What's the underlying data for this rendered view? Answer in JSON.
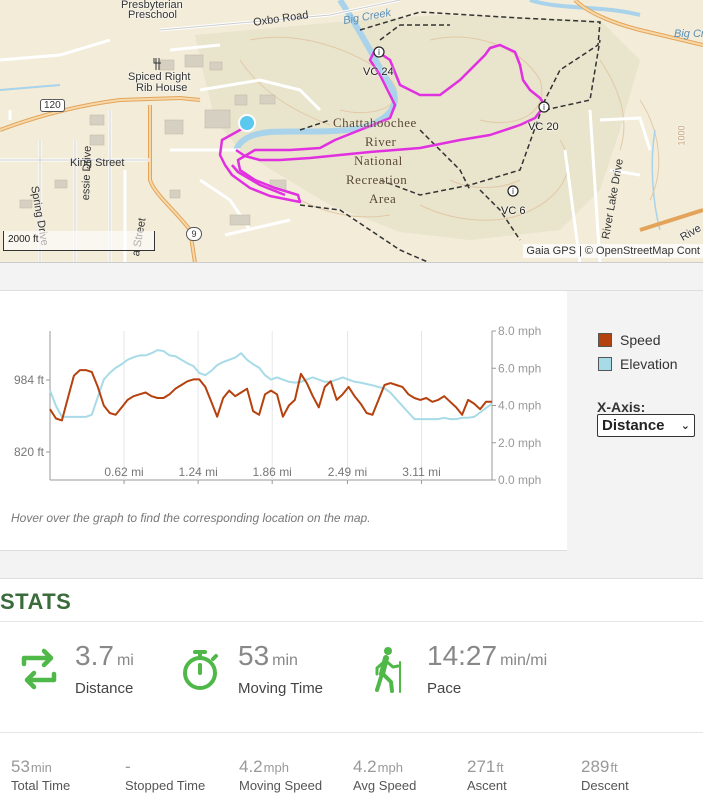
{
  "map": {
    "labels": {
      "presbyterian": "Presbyterian",
      "preschool": "Preschool",
      "oxbo_road": "Oxbo Road",
      "big_creek_1": "Big Creek",
      "big_creek_2": "Big Cr",
      "spiced_right": "Spiced Right",
      "rib_house": "Rib House",
      "route_120": "120",
      "king_street": "King Street",
      "spring_drive": "Spring Drive",
      "essie_drive": "essie Drive",
      "a_street": "a Street",
      "river_lake_drive": "River Lake Drive",
      "route_9": "9",
      "park_1": "Chattahoochee",
      "park_2": "River",
      "park_3": "National",
      "park_4": "Recreation",
      "park_5": "Area",
      "vc24": "VC 24",
      "vc20": "VC 20",
      "vc6": "VC 6",
      "river_edge": "Rive",
      "contour": "1000"
    },
    "scale_label": "2000 ft",
    "attribution": "Gaia GPS | © OpenStreetMap Cont",
    "track_color": "#e030e0",
    "start_marker_color": "#5bc8f0"
  },
  "chart": {
    "left_ticks": [
      "984 ft",
      "820 ft"
    ],
    "right_ticks": [
      "8.0 mph",
      "6.0 mph",
      "4.0 mph",
      "2.0 mph",
      "0.0 mph"
    ],
    "x_ticks": [
      "0.62 mi",
      "1.24 mi",
      "1.86 mi",
      "2.49 mi",
      "3.11 mi"
    ],
    "legend": [
      {
        "name": "Speed",
        "color": "#b5410e"
      },
      {
        "name": "Elevation",
        "color": "#a8dbe8"
      }
    ],
    "xaxis_label": "X-Axis:",
    "xaxis_value": "Distance",
    "hint": "Hover over the graph to find the corresponding location on the map."
  },
  "chart_data": {
    "type": "line",
    "xlabel": "",
    "ylabel": "",
    "x_unit": "mi",
    "x_range": [
      0,
      3.7
    ],
    "y_left_unit": "ft",
    "y_right_unit": "mph",
    "y_right_range": [
      0,
      8
    ],
    "series": [
      {
        "name": "Speed",
        "axis": "right",
        "x": [
          0.0,
          0.05,
          0.1,
          0.15,
          0.2,
          0.25,
          0.3,
          0.35,
          0.4,
          0.45,
          0.5,
          0.55,
          0.6,
          0.65,
          0.7,
          0.75,
          0.8,
          0.85,
          0.9,
          0.95,
          1.0,
          1.05,
          1.1,
          1.15,
          1.2,
          1.25,
          1.3,
          1.35,
          1.4,
          1.45,
          1.5,
          1.55,
          1.6,
          1.65,
          1.7,
          1.75,
          1.8,
          1.85,
          1.9,
          1.95,
          2.0,
          2.05,
          2.1,
          2.15,
          2.2,
          2.25,
          2.3,
          2.35,
          2.4,
          2.45,
          2.5,
          2.55,
          2.6,
          2.65,
          2.7,
          2.75,
          2.8,
          2.85,
          2.9,
          2.95,
          3.0,
          3.05,
          3.1,
          3.15,
          3.2,
          3.25,
          3.3,
          3.35,
          3.4,
          3.45,
          3.5,
          3.55,
          3.6,
          3.65,
          3.7
        ],
        "values": [
          3.8,
          3.3,
          3.2,
          4.4,
          5.6,
          5.9,
          5.9,
          5.8,
          5.0,
          4.0,
          3.6,
          3.5,
          3.9,
          4.3,
          4.5,
          4.6,
          4.7,
          4.5,
          4.4,
          4.4,
          4.6,
          4.9,
          5.1,
          5.3,
          5.4,
          5.4,
          5.0,
          4.2,
          3.4,
          4.4,
          4.8,
          4.5,
          4.7,
          4.9,
          3.7,
          3.5,
          4.6,
          4.8,
          4.6,
          3.4,
          4.0,
          4.3,
          5.7,
          5.2,
          4.5,
          3.9,
          5.0,
          5.3,
          4.3,
          4.6,
          5.0,
          4.5,
          4.1,
          3.6,
          3.5,
          4.3,
          5.1,
          5.2,
          5.1,
          5.0,
          4.6,
          4.4,
          4.3,
          4.4,
          4.2,
          4.3,
          4.5,
          4.2,
          3.9,
          3.5,
          4.3,
          4.1,
          3.8,
          4.2,
          4.2
        ]
      },
      {
        "name": "Elevation",
        "axis": "left",
        "x": [
          0.0,
          0.05,
          0.1,
          0.15,
          0.2,
          0.25,
          0.3,
          0.35,
          0.4,
          0.45,
          0.5,
          0.55,
          0.6,
          0.65,
          0.7,
          0.75,
          0.8,
          0.85,
          0.9,
          0.95,
          1.0,
          1.05,
          1.1,
          1.15,
          1.2,
          1.25,
          1.3,
          1.35,
          1.4,
          1.45,
          1.5,
          1.55,
          1.6,
          1.65,
          1.7,
          1.75,
          1.8,
          1.85,
          1.9,
          1.95,
          2.0,
          2.05,
          2.1,
          2.15,
          2.2,
          2.25,
          2.3,
          2.35,
          2.4,
          2.45,
          2.5,
          2.55,
          2.6,
          2.65,
          2.7,
          2.75,
          2.8,
          2.85,
          2.9,
          2.95,
          3.0,
          3.05,
          3.1,
          3.15,
          3.2,
          3.25,
          3.3,
          3.35,
          3.4,
          3.45,
          3.5,
          3.55,
          3.6,
          3.65,
          3.7
        ],
        "values": [
          960,
          925,
          900,
          900,
          900,
          900,
          900,
          905,
          945,
          985,
          1000,
          1012,
          1020,
          1030,
          1036,
          1040,
          1040,
          1045,
          1052,
          1050,
          1040,
          1038,
          1030,
          1022,
          1016,
          1000,
          995,
          1005,
          1018,
          1025,
          1030,
          1035,
          1045,
          1030,
          1020,
          1012,
          995,
          985,
          990,
          985,
          980,
          978,
          980,
          985,
          990,
          985,
          980,
          980,
          985,
          990,
          985,
          980,
          978,
          975,
          972,
          968,
          965,
          955,
          940,
          925,
          910,
          895,
          895,
          895,
          895,
          895,
          898,
          895,
          895,
          898,
          898,
          900,
          910,
          920,
          930
        ]
      }
    ],
    "y_left_ticks": [
      984,
      820
    ],
    "y_right_ticks": [
      8.0,
      6.0,
      4.0,
      2.0,
      0.0
    ],
    "x_ticks": [
      0.62,
      1.24,
      1.86,
      2.49,
      3.11
    ],
    "legend_position": "right",
    "grid": "vertical"
  },
  "stats": {
    "title": "STATS",
    "main": [
      {
        "value": "3.7",
        "unit": "mi",
        "label": "Distance",
        "icon": "loop-arrows-icon"
      },
      {
        "value": "53",
        "unit": "min",
        "label": "Moving Time",
        "icon": "stopwatch-icon"
      },
      {
        "value": "14:27",
        "unit": "min/mi",
        "label": "Pace",
        "icon": "hiker-icon"
      }
    ],
    "small": [
      {
        "value": "53",
        "unit": "min",
        "label": "Total Time"
      },
      {
        "value": "-",
        "unit": "",
        "label": "Stopped Time"
      },
      {
        "value": "4.2",
        "unit": "mph",
        "label": "Moving Speed"
      },
      {
        "value": "4.2",
        "unit": "mph",
        "label": "Avg Speed"
      },
      {
        "value": "271",
        "unit": "ft",
        "label": "Ascent"
      },
      {
        "value": "289",
        "unit": "ft",
        "label": "Descent"
      }
    ],
    "icon_color": "#4fb848"
  }
}
